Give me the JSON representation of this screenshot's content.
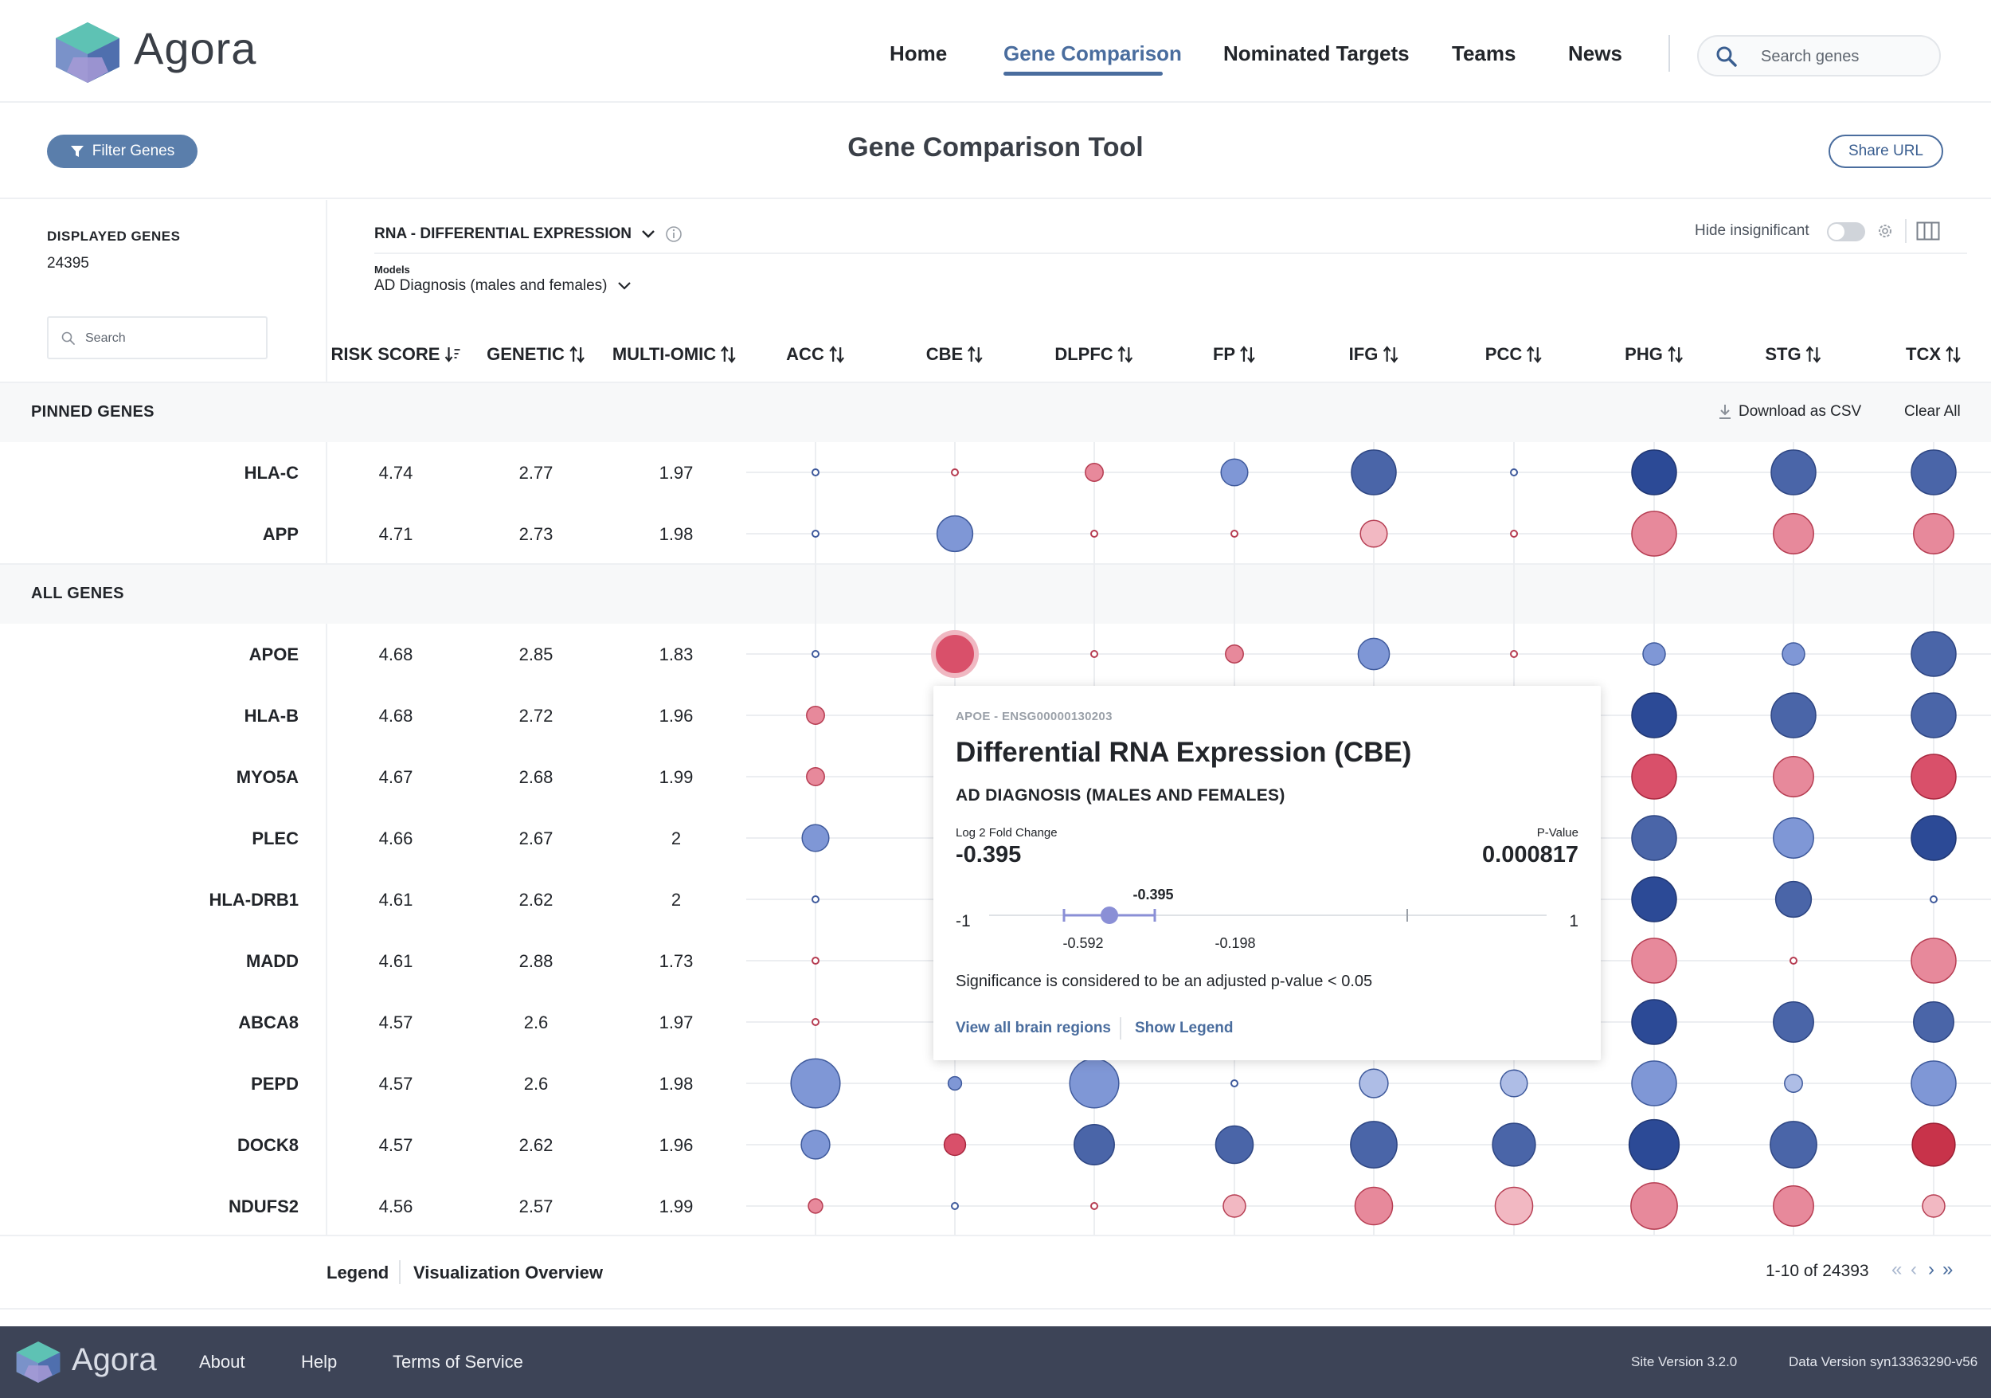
{
  "app": {
    "name": "Agora"
  },
  "nav": {
    "items": [
      {
        "label": "Home"
      },
      {
        "label": "Gene Comparison"
      },
      {
        "label": "Nominated Targets"
      },
      {
        "label": "Teams"
      },
      {
        "label": "News"
      }
    ],
    "active": "Gene Comparison",
    "search_placeholder": "Search genes"
  },
  "toolbar": {
    "filter_label": "Filter Genes",
    "page_title": "Gene Comparison Tool",
    "share_label": "Share URL"
  },
  "controls": {
    "displayed_label": "DISPLAYED GENES",
    "displayed_count": "24395",
    "search_placeholder": "Search",
    "category": "RNA - DIFFERENTIAL EXPRESSION",
    "models_label": "Models",
    "model": "AD Diagnosis (males and females)",
    "hide_insignificant_label": "Hide insignificant",
    "hide_insignificant_on": false
  },
  "table": {
    "columns": [
      {
        "label": "RISK SCORE",
        "sort": "desc"
      },
      {
        "label": "GENETIC",
        "sort": "both"
      },
      {
        "label": "MULTI-OMIC",
        "sort": "both"
      },
      {
        "label": "ACC",
        "sort": "both"
      },
      {
        "label": "CBE",
        "sort": "both"
      },
      {
        "label": "DLPFC",
        "sort": "both"
      },
      {
        "label": "FP",
        "sort": "both"
      },
      {
        "label": "IFG",
        "sort": "both"
      },
      {
        "label": "PCC",
        "sort": "both"
      },
      {
        "label": "PHG",
        "sort": "both"
      },
      {
        "label": "STG",
        "sort": "both"
      },
      {
        "label": "TCX",
        "sort": "both"
      }
    ],
    "pinned_title": "PINNED GENES",
    "all_title": "ALL GENES",
    "download_label": "Download as CSV",
    "clear_label": "Clear All",
    "pinned_rows": [
      {
        "gene": "HLA-C",
        "risk": "4.74",
        "genetic": "2.77",
        "multiomic": "1.97"
      },
      {
        "gene": "APP",
        "risk": "4.71",
        "genetic": "2.73",
        "multiomic": "1.98"
      }
    ],
    "rows": [
      {
        "gene": "APOE",
        "risk": "4.68",
        "genetic": "2.85",
        "multiomic": "1.83"
      },
      {
        "gene": "HLA-B",
        "risk": "4.68",
        "genetic": "2.72",
        "multiomic": "1.96"
      },
      {
        "gene": "MYO5A",
        "risk": "4.67",
        "genetic": "2.68",
        "multiomic": "1.99"
      },
      {
        "gene": "PLEC",
        "risk": "4.66",
        "genetic": "2.67",
        "multiomic": "2"
      },
      {
        "gene": "HLA-DRB1",
        "risk": "4.61",
        "genetic": "2.62",
        "multiomic": "2"
      },
      {
        "gene": "MADD",
        "risk": "4.61",
        "genetic": "2.88",
        "multiomic": "1.73"
      },
      {
        "gene": "ABCA8",
        "risk": "4.57",
        "genetic": "2.6",
        "multiomic": "1.97"
      },
      {
        "gene": "PEPD",
        "risk": "4.57",
        "genetic": "2.6",
        "multiomic": "1.98"
      },
      {
        "gene": "DOCK8",
        "risk": "4.57",
        "genetic": "2.62",
        "multiomic": "1.96"
      },
      {
        "gene": "NDUFS2",
        "risk": "4.56",
        "genetic": "2.57",
        "multiomic": "1.99"
      }
    ],
    "circle_colors": {
      "blue_light": "#aebde6",
      "blue_mid": "#7f97d6",
      "blue_dark": "#4a65a8",
      "blue_deep": "#2c4a96",
      "pink_light": "#f2b8c2",
      "pink_mid": "#e7899b",
      "pink_dark": "#d9506a",
      "red_deep": "#c8334a"
    },
    "circles": [
      {
        "gene": "HLA-C",
        "cells": [
          [
            "b",
            1
          ],
          [
            "p",
            1
          ],
          [
            "p",
            2
          ],
          [
            "b",
            3
          ],
          [
            "B",
            5
          ],
          [
            "b",
            1
          ],
          [
            "D",
            5
          ],
          [
            "B",
            5
          ],
          [
            "B",
            5
          ]
        ]
      },
      {
        "gene": "APP",
        "cells": [
          [
            "b",
            1
          ],
          [
            "m",
            4
          ],
          [
            "p",
            1
          ],
          [
            "p",
            1
          ],
          [
            "q",
            3
          ],
          [
            "p",
            1
          ],
          [
            "r",
            5
          ],
          [
            "r",
            4.5
          ],
          [
            "r",
            4.5
          ]
        ]
      },
      {
        "gene": "APOE",
        "cells": [
          [
            "b",
            1
          ],
          [
            "R",
            5
          ],
          [
            "p",
            1
          ],
          [
            "p",
            2
          ],
          [
            "m",
            3.5
          ],
          [
            "p",
            1
          ],
          [
            "m",
            2.5
          ],
          [
            "m",
            2.5
          ],
          [
            "B",
            5
          ]
        ]
      },
      {
        "gene": "HLA-B",
        "cells": [
          [
            "p",
            2
          ],
          null,
          null,
          null,
          null,
          null,
          [
            "D",
            5
          ],
          [
            "B",
            5
          ],
          [
            "B",
            5
          ]
        ]
      },
      {
        "gene": "MYO5A",
        "cells": [
          [
            "p",
            2
          ],
          null,
          null,
          null,
          null,
          null,
          [
            "R",
            5
          ],
          [
            "r",
            4.5
          ],
          [
            "R",
            5
          ]
        ]
      },
      {
        "gene": "PLEC",
        "cells": [
          [
            "m",
            3
          ],
          null,
          null,
          null,
          null,
          null,
          [
            "B",
            5
          ],
          [
            "m",
            4.5
          ],
          [
            "D",
            5
          ]
        ]
      },
      {
        "gene": "HLA-DRB1",
        "cells": [
          [
            "b",
            1
          ],
          null,
          null,
          null,
          null,
          null,
          [
            "D",
            5
          ],
          [
            "B",
            4
          ],
          [
            "b",
            1
          ]
        ]
      },
      {
        "gene": "MADD",
        "cells": [
          [
            "p",
            1
          ],
          null,
          null,
          null,
          null,
          null,
          [
            "r",
            5
          ],
          [
            "p",
            1
          ],
          [
            "r",
            5
          ]
        ]
      },
      {
        "gene": "ABCA8",
        "cells": [
          [
            "p",
            1
          ],
          null,
          null,
          null,
          null,
          null,
          [
            "D",
            5
          ],
          [
            "B",
            4.5
          ],
          [
            "B",
            4.5
          ]
        ]
      },
      {
        "gene": "PEPD",
        "cells": [
          [
            "m",
            5.5
          ],
          [
            "b",
            1.5
          ],
          [
            "m",
            5.5
          ],
          [
            "b",
            1
          ],
          [
            "l",
            3.2
          ],
          [
            "l",
            3
          ],
          [
            "m",
            5
          ],
          [
            "l",
            2
          ],
          [
            "m",
            5
          ]
        ]
      },
      {
        "gene": "DOCK8",
        "cells": [
          [
            "m",
            3.2
          ],
          [
            "R",
            2.4
          ],
          [
            "B",
            4.5
          ],
          [
            "B",
            4.2
          ],
          [
            "B",
            5.2
          ],
          [
            "B",
            4.8
          ],
          [
            "D",
            5.6
          ],
          [
            "B",
            5.2
          ],
          [
            "R2",
            4.8
          ]
        ]
      },
      {
        "gene": "NDUFS2",
        "cells": [
          [
            "p",
            1.6
          ],
          [
            "b",
            1
          ],
          [
            "p",
            1
          ],
          [
            "q",
            2.5
          ],
          [
            "r",
            4.2
          ],
          [
            "q",
            4.2
          ],
          [
            "r",
            5.2
          ],
          [
            "r",
            4.5
          ],
          [
            "q",
            2.5
          ]
        ]
      }
    ]
  },
  "tooltip": {
    "gene_id": "APOE - ENSG00000130203",
    "title": "Differential RNA Expression (CBE)",
    "model": "AD DIAGNOSIS (MALES AND FEMALES)",
    "fc_label": "Log 2 Fold Change",
    "fc_value": "-0.395",
    "p_label": "P-Value",
    "p_value": "0.000817",
    "axis_min": "-1",
    "axis_max": "1",
    "point_label": "-0.395",
    "ci_low": "-0.592",
    "ci_high": "-0.198",
    "significance_note": "Significance is considered to be an adjusted p-value < 0.05",
    "link_regions": "View all brain regions",
    "link_legend": "Show Legend",
    "point_color": "#8a8fd6"
  },
  "bottom": {
    "legend_label": "Legend",
    "overview_label": "Visualization Overview",
    "pagination": "1-10 of 24393"
  },
  "footer": {
    "brand": "Agora",
    "links": [
      {
        "label": "About"
      },
      {
        "label": "Help"
      },
      {
        "label": "Terms of Service"
      }
    ],
    "site_version": "Site Version 3.2.0",
    "data_version": "Data Version syn13363290-v56"
  }
}
